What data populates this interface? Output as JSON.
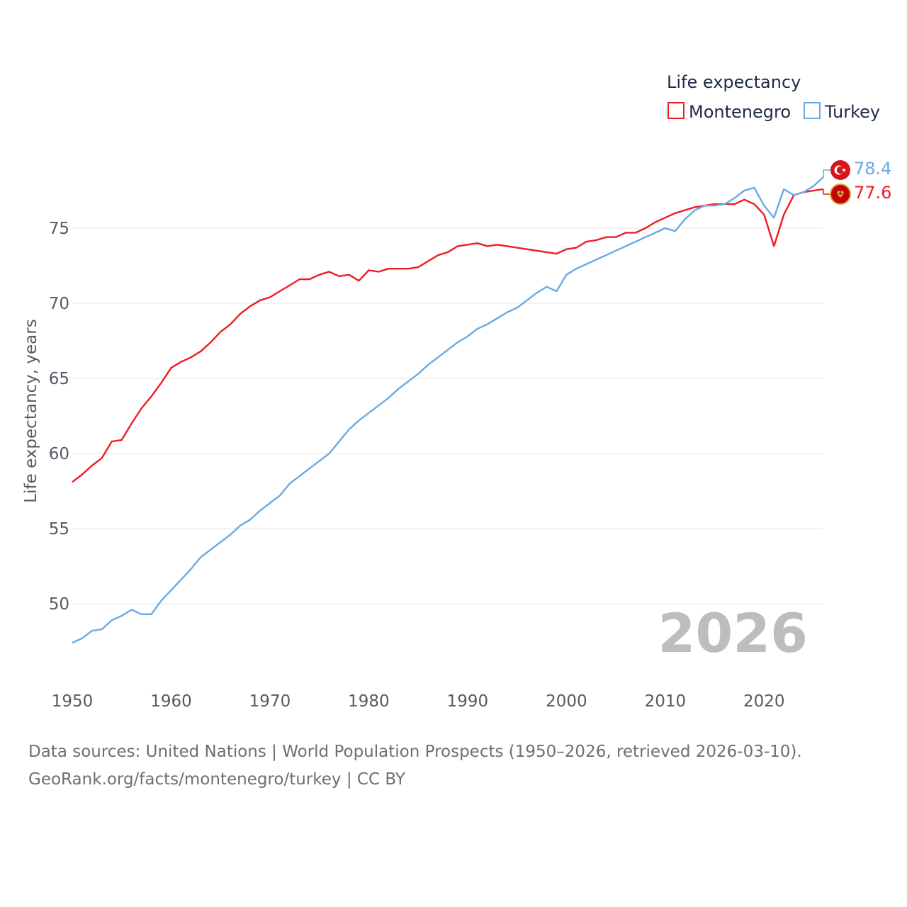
{
  "colors": {
    "montenegro": "#ee1c25",
    "turkey": "#6aaae4",
    "grid": "#e6e6e6",
    "watermark": "#bdbdbd"
  },
  "legend": {
    "title": "Life expectancy",
    "items": [
      {
        "label": "Montenegro"
      },
      {
        "label": "Turkey"
      }
    ]
  },
  "watermark_year": "2026",
  "end_labels": {
    "turkey": "78.4",
    "montenegro": "77.6"
  },
  "flag_icons": {
    "turkey": "crescent-star-flag-icon",
    "montenegro": "eagle-emblem-flag-icon"
  },
  "source": {
    "line1": "Data sources: United Nations | World Population Prospects (1950–2026, retrieved 2026-03-10).",
    "line2": "GeoRank.org/facts/montenegro/turkey | CC BY"
  },
  "chart_data": {
    "type": "line",
    "title": "Life expectancy",
    "xlabel": "",
    "ylabel": "Life expectancy, years",
    "xlim": [
      1950,
      2026
    ],
    "ylim": [
      45,
      80
    ],
    "x_ticks": [
      1950,
      1960,
      1970,
      1980,
      1990,
      2000,
      2010,
      2020
    ],
    "y_ticks": [
      50,
      55,
      60,
      65,
      70,
      75
    ],
    "grid": true,
    "legend_position": "top-right",
    "x": [
      1950,
      1951,
      1952,
      1953,
      1954,
      1955,
      1956,
      1957,
      1958,
      1959,
      1960,
      1961,
      1962,
      1963,
      1964,
      1965,
      1966,
      1967,
      1968,
      1969,
      1970,
      1971,
      1972,
      1973,
      1974,
      1975,
      1976,
      1977,
      1978,
      1979,
      1980,
      1981,
      1982,
      1983,
      1984,
      1985,
      1986,
      1987,
      1988,
      1989,
      1990,
      1991,
      1992,
      1993,
      1994,
      1995,
      1996,
      1997,
      1998,
      1999,
      2000,
      2001,
      2002,
      2003,
      2004,
      2005,
      2006,
      2007,
      2008,
      2009,
      2010,
      2011,
      2012,
      2013,
      2014,
      2015,
      2016,
      2017,
      2018,
      2019,
      2020,
      2021,
      2022,
      2023,
      2024,
      2025,
      2026
    ],
    "series": [
      {
        "name": "Montenegro",
        "values": [
          58.1,
          58.6,
          59.2,
          59.7,
          60.8,
          60.9,
          62.0,
          63.0,
          63.8,
          64.7,
          65.7,
          66.1,
          66.4,
          66.8,
          67.4,
          68.1,
          68.6,
          69.3,
          69.8,
          70.2,
          70.4,
          70.8,
          71.2,
          71.6,
          71.6,
          71.9,
          72.1,
          71.8,
          71.9,
          71.5,
          72.2,
          72.1,
          72.3,
          72.3,
          72.3,
          72.4,
          72.8,
          73.2,
          73.4,
          73.8,
          73.9,
          74.0,
          73.8,
          73.9,
          73.8,
          73.7,
          73.6,
          73.5,
          73.4,
          73.3,
          73.6,
          73.7,
          74.1,
          74.2,
          74.4,
          74.4,
          74.7,
          74.7,
          75.0,
          75.4,
          75.7,
          76.0,
          76.2,
          76.4,
          76.5,
          76.6,
          76.6,
          76.6,
          76.9,
          76.6,
          75.9,
          73.8,
          75.9,
          77.2,
          77.4,
          77.5,
          77.6
        ]
      },
      {
        "name": "Turkey",
        "values": [
          47.4,
          47.7,
          48.2,
          48.3,
          48.9,
          49.2,
          49.6,
          49.3,
          49.3,
          50.2,
          50.9,
          51.6,
          52.3,
          53.1,
          53.6,
          54.1,
          54.6,
          55.2,
          55.6,
          56.2,
          56.7,
          57.2,
          58.0,
          58.5,
          59.0,
          59.5,
          60.0,
          60.8,
          61.6,
          62.2,
          62.7,
          63.2,
          63.7,
          64.3,
          64.8,
          65.3,
          65.9,
          66.4,
          66.9,
          67.4,
          67.8,
          68.3,
          68.6,
          69.0,
          69.4,
          69.7,
          70.2,
          70.7,
          71.1,
          70.8,
          71.9,
          72.3,
          72.6,
          72.9,
          73.2,
          73.5,
          73.8,
          74.1,
          74.4,
          74.7,
          75.0,
          74.8,
          75.6,
          76.2,
          76.5,
          76.5,
          76.6,
          77.0,
          77.5,
          77.7,
          76.5,
          75.7,
          77.6,
          77.2,
          77.4,
          77.8,
          78.4
        ]
      }
    ]
  }
}
